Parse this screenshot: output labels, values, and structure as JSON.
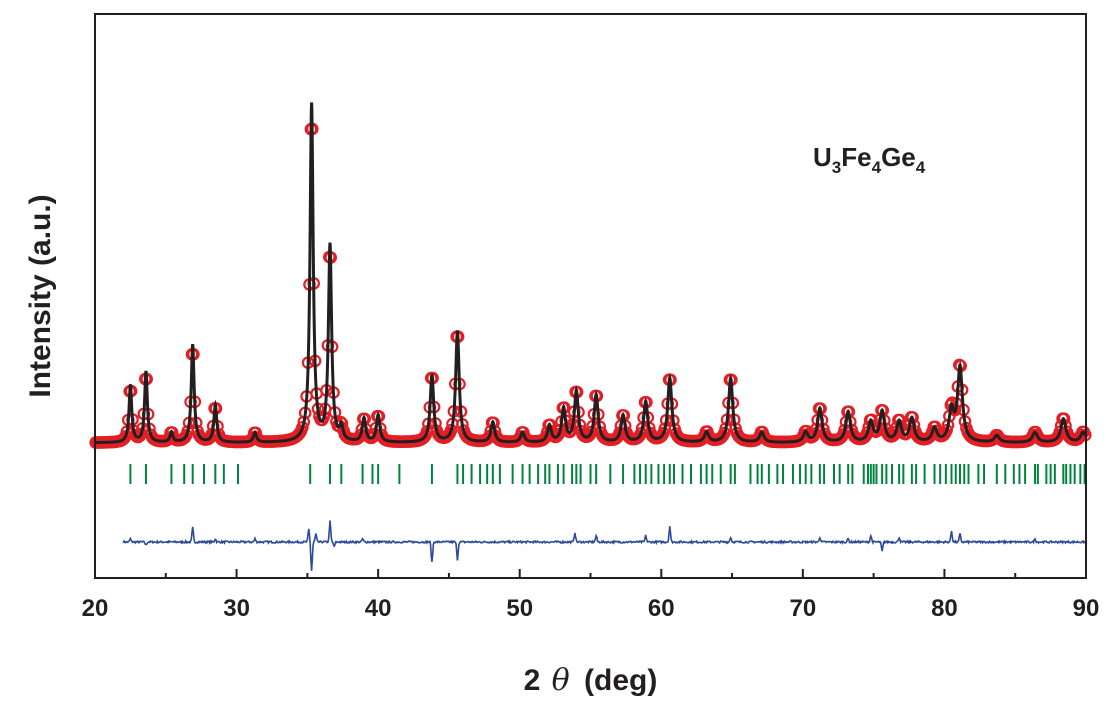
{
  "chart_data": {
    "type": "line",
    "title": "",
    "xlabel": "2θ (deg)",
    "xlabel_prefix": "2",
    "xlabel_symbol": "θ",
    "xlabel_suffix": "(deg)",
    "ylabel": "Intensity (a.u.)",
    "xlim": [
      20,
      90
    ],
    "x_ticks": [
      "20",
      "30",
      "40",
      "50",
      "60",
      "70",
      "80",
      "90"
    ],
    "y_ticks_shown": false,
    "annotation": {
      "parts": [
        {
          "text": "U",
          "sub": false
        },
        {
          "text": "3",
          "sub": true
        },
        {
          "text": "Fe",
          "sub": false
        },
        {
          "text": "4",
          "sub": true
        },
        {
          "text": "Ge",
          "sub": false
        },
        {
          "text": "4",
          "sub": true
        }
      ]
    },
    "background": 0.015,
    "peaks": [
      {
        "x": 22.5,
        "y": 0.17
      },
      {
        "x": 23.6,
        "y": 0.21
      },
      {
        "x": 25.4,
        "y": 0.03
      },
      {
        "x": 26.9,
        "y": 0.29
      },
      {
        "x": 28.5,
        "y": 0.11
      },
      {
        "x": 31.3,
        "y": 0.03
      },
      {
        "x": 35.3,
        "y": 1.0
      },
      {
        "x": 36.6,
        "y": 0.58
      },
      {
        "x": 37.4,
        "y": 0.04
      },
      {
        "x": 39.0,
        "y": 0.07
      },
      {
        "x": 40.0,
        "y": 0.08
      },
      {
        "x": 43.8,
        "y": 0.2
      },
      {
        "x": 45.6,
        "y": 0.33
      },
      {
        "x": 48.1,
        "y": 0.06
      },
      {
        "x": 50.2,
        "y": 0.03
      },
      {
        "x": 52.1,
        "y": 0.05
      },
      {
        "x": 53.1,
        "y": 0.1
      },
      {
        "x": 54.0,
        "y": 0.15
      },
      {
        "x": 55.4,
        "y": 0.14
      },
      {
        "x": 57.3,
        "y": 0.08
      },
      {
        "x": 58.9,
        "y": 0.12
      },
      {
        "x": 60.6,
        "y": 0.19
      },
      {
        "x": 63.2,
        "y": 0.03
      },
      {
        "x": 64.9,
        "y": 0.19
      },
      {
        "x": 67.1,
        "y": 0.03
      },
      {
        "x": 70.2,
        "y": 0.03
      },
      {
        "x": 71.2,
        "y": 0.1
      },
      {
        "x": 73.2,
        "y": 0.09
      },
      {
        "x": 74.8,
        "y": 0.06
      },
      {
        "x": 75.6,
        "y": 0.09
      },
      {
        "x": 76.8,
        "y": 0.06
      },
      {
        "x": 77.7,
        "y": 0.07
      },
      {
        "x": 79.3,
        "y": 0.04
      },
      {
        "x": 80.5,
        "y": 0.09
      },
      {
        "x": 81.1,
        "y": 0.22
      },
      {
        "x": 83.7,
        "y": 0.02
      },
      {
        "x": 86.4,
        "y": 0.03
      },
      {
        "x": 88.4,
        "y": 0.07
      },
      {
        "x": 89.8,
        "y": 0.03
      }
    ],
    "bragg_positions": [
      22.5,
      23.6,
      25.4,
      26.3,
      26.9,
      27.7,
      28.5,
      29.1,
      30.1,
      35.2,
      36.6,
      37.4,
      38.9,
      39.6,
      40.0,
      41.5,
      43.8,
      45.6,
      46.0,
      46.6,
      47.2,
      47.7,
      48.1,
      48.6,
      49.5,
      50.2,
      50.7,
      51.3,
      51.8,
      52.1,
      52.7,
      53.1,
      53.7,
      54.0,
      54.3,
      55.0,
      55.4,
      56.4,
      57.3,
      58.1,
      58.5,
      58.9,
      59.3,
      59.8,
      60.2,
      60.6,
      60.9,
      61.5,
      62.1,
      62.8,
      63.2,
      63.6,
      64.2,
      64.9,
      65.2,
      66.3,
      66.8,
      67.1,
      67.6,
      68.2,
      68.6,
      69.3,
      69.8,
      70.2,
      70.6,
      71.2,
      71.5,
      72.2,
      72.6,
      73.2,
      73.5,
      74.3,
      74.6,
      74.8,
      75.0,
      75.2,
      75.6,
      75.9,
      76.3,
      76.8,
      77.1,
      77.7,
      78.0,
      78.6,
      79.3,
      79.7,
      80.1,
      80.5,
      80.8,
      81.1,
      81.4,
      81.7,
      82.4,
      82.8,
      83.7,
      84.3,
      84.9,
      85.3,
      85.7,
      86.4,
      86.6,
      87.2,
      87.5,
      87.8,
      88.4,
      88.6,
      88.9,
      89.2,
      89.6,
      89.9
    ],
    "difference_spikes": [
      {
        "x": 22.5,
        "d": 0.02
      },
      {
        "x": 23.6,
        "d": -0.02
      },
      {
        "x": 26.9,
        "d": 0.09
      },
      {
        "x": 28.5,
        "d": 0.02
      },
      {
        "x": 31.3,
        "d": 0.02
      },
      {
        "x": 35.1,
        "d": 0.08
      },
      {
        "x": 35.3,
        "d": -0.18
      },
      {
        "x": 35.6,
        "d": 0.05
      },
      {
        "x": 36.6,
        "d": 0.13
      },
      {
        "x": 36.9,
        "d": -0.03
      },
      {
        "x": 38.9,
        "d": 0.02
      },
      {
        "x": 43.8,
        "d": -0.13
      },
      {
        "x": 45.6,
        "d": -0.11
      },
      {
        "x": 53.9,
        "d": 0.06
      },
      {
        "x": 55.4,
        "d": 0.04
      },
      {
        "x": 58.9,
        "d": 0.04
      },
      {
        "x": 60.6,
        "d": 0.1
      },
      {
        "x": 64.9,
        "d": 0.03
      },
      {
        "x": 71.2,
        "d": 0.03
      },
      {
        "x": 73.2,
        "d": 0.02
      },
      {
        "x": 74.8,
        "d": 0.04
      },
      {
        "x": 75.6,
        "d": -0.06
      },
      {
        "x": 76.8,
        "d": 0.03
      },
      {
        "x": 80.5,
        "d": 0.07
      },
      {
        "x": 81.1,
        "d": 0.05
      },
      {
        "x": 86.4,
        "d": 0.02
      }
    ],
    "series": [
      {
        "kind": "observed",
        "marker": "circle"
      },
      {
        "kind": "calculated",
        "style": "line"
      },
      {
        "kind": "bragg",
        "style": "ticks"
      },
      {
        "kind": "difference",
        "style": "line"
      }
    ],
    "colors": {
      "observed": "#e31e24",
      "calculated": "#231f20",
      "bragg": "#00843d",
      "difference": "#2b4a9b",
      "axis": "#231f20"
    },
    "grid": false,
    "legend": "none"
  }
}
